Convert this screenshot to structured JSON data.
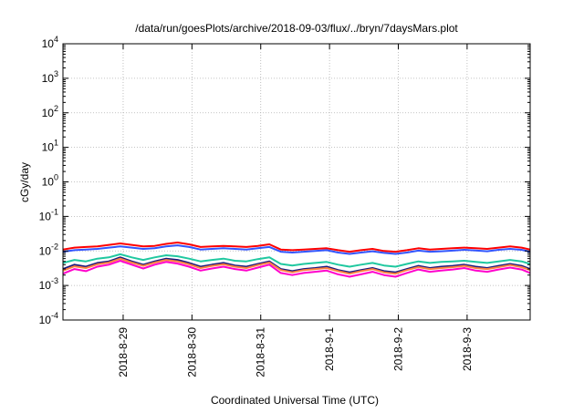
{
  "chart_data": {
    "type": "line",
    "title": "/data/run/goesPlots/archive/2018-09-03/flux/../bryn/7daysMars.plot",
    "xlabel": "Coordinated Universal Time (UTC)",
    "ylabel": "cGy/day",
    "yscale": "log",
    "ylim": [
      0.0001,
      10000
    ],
    "y_ticks": [
      {
        "base": "10",
        "exp": "4",
        "value": 10000
      },
      {
        "base": "10",
        "exp": "3",
        "value": 1000
      },
      {
        "base": "10",
        "exp": "2",
        "value": 100
      },
      {
        "base": "10",
        "exp": "1",
        "value": 10
      },
      {
        "base": "10",
        "exp": "0",
        "value": 1
      },
      {
        "base": "10",
        "exp": "-1",
        "value": 0.1
      },
      {
        "base": "10",
        "exp": "-2",
        "value": 0.01
      },
      {
        "base": "10",
        "exp": "-3",
        "value": 0.001
      },
      {
        "base": "10",
        "exp": "-4",
        "value": 0.0001
      }
    ],
    "x_range": [
      "2018-08-28T03:00",
      "2018-09-03T22:00"
    ],
    "x_ticks": [
      {
        "label": "2018-8-29",
        "date": "2018-08-29T00:00"
      },
      {
        "label": "2018-8-30",
        "date": "2018-08-30T00:00"
      },
      {
        "label": "2018-8-31",
        "date": "2018-08-31T00:00"
      },
      {
        "label": "2018-9-1",
        "date": "2018-09-01T00:00"
      },
      {
        "label": "2018-9-2",
        "date": "2018-09-02T00:00"
      },
      {
        "label": "2018-9-3",
        "date": "2018-09-03T00:00"
      }
    ],
    "grid": true,
    "x": [
      "2018-08-28T03:00",
      "2018-08-28T07:00",
      "2018-08-28T11:00",
      "2018-08-28T15:00",
      "2018-08-28T19:00",
      "2018-08-28T23:00",
      "2018-08-29T03:00",
      "2018-08-29T07:00",
      "2018-08-29T11:00",
      "2018-08-29T15:00",
      "2018-08-29T19:00",
      "2018-08-29T23:00",
      "2018-08-30T03:00",
      "2018-08-30T07:00",
      "2018-08-30T11:00",
      "2018-08-30T15:00",
      "2018-08-30T19:00",
      "2018-08-30T23:00",
      "2018-08-31T03:00",
      "2018-08-31T07:00",
      "2018-08-31T11:00",
      "2018-08-31T15:00",
      "2018-08-31T19:00",
      "2018-08-31T23:00",
      "2018-09-01T03:00",
      "2018-09-01T07:00",
      "2018-09-01T11:00",
      "2018-09-01T15:00",
      "2018-09-01T19:00",
      "2018-09-01T23:00",
      "2018-09-02T03:00",
      "2018-09-02T07:00",
      "2018-09-02T11:00",
      "2018-09-02T15:00",
      "2018-09-02T19:00",
      "2018-09-02T23:00",
      "2018-09-03T03:00",
      "2018-09-03T07:00",
      "2018-09-03T11:00",
      "2018-09-03T15:00",
      "2018-09-03T19:00",
      "2018-09-03T22:00"
    ],
    "series": [
      {
        "color": "#ff0000",
        "values": [
          0.011,
          0.0125,
          0.013,
          0.0135,
          0.015,
          0.0165,
          0.015,
          0.0135,
          0.014,
          0.016,
          0.0175,
          0.0155,
          0.013,
          0.0135,
          0.014,
          0.0135,
          0.013,
          0.014,
          0.0155,
          0.011,
          0.0105,
          0.011,
          0.0115,
          0.012,
          0.0105,
          0.0095,
          0.0105,
          0.0115,
          0.01,
          0.0095,
          0.0105,
          0.012,
          0.011,
          0.0115,
          0.012,
          0.0125,
          0.012,
          0.0115,
          0.0125,
          0.0135,
          0.0125,
          0.011
        ]
      },
      {
        "color": "#3355ff",
        "values": [
          0.0095,
          0.0105,
          0.011,
          0.0115,
          0.0125,
          0.0135,
          0.0125,
          0.0115,
          0.012,
          0.0135,
          0.0145,
          0.013,
          0.011,
          0.0115,
          0.012,
          0.0115,
          0.011,
          0.012,
          0.013,
          0.0095,
          0.009,
          0.0095,
          0.01,
          0.0105,
          0.009,
          0.0082,
          0.009,
          0.0098,
          0.0088,
          0.0082,
          0.009,
          0.0102,
          0.0095,
          0.0098,
          0.0102,
          0.0108,
          0.0103,
          0.0098,
          0.0108,
          0.0115,
          0.0108,
          0.0095
        ]
      },
      {
        "color": "#20c8a0",
        "values": [
          0.0045,
          0.0055,
          0.005,
          0.006,
          0.0065,
          0.008,
          0.0065,
          0.0055,
          0.0065,
          0.0075,
          0.007,
          0.006,
          0.005,
          0.0055,
          0.006,
          0.0052,
          0.005,
          0.0058,
          0.0065,
          0.0042,
          0.0038,
          0.0042,
          0.0045,
          0.0048,
          0.004,
          0.0035,
          0.004,
          0.0045,
          0.0038,
          0.0035,
          0.0042,
          0.005,
          0.0045,
          0.0048,
          0.005,
          0.0052,
          0.0048,
          0.0045,
          0.005,
          0.0055,
          0.005,
          0.0042
        ]
      },
      {
        "color": "#1a1a80",
        "values": [
          0.003,
          0.004,
          0.0035,
          0.0045,
          0.005,
          0.0065,
          0.005,
          0.004,
          0.005,
          0.006,
          0.0055,
          0.0045,
          0.0035,
          0.004,
          0.0045,
          0.0038,
          0.0035,
          0.0042,
          0.005,
          0.003,
          0.0026,
          0.003,
          0.0032,
          0.0035,
          0.0028,
          0.0024,
          0.0028,
          0.0032,
          0.0026,
          0.0024,
          0.003,
          0.0037,
          0.0032,
          0.0035,
          0.0037,
          0.004,
          0.0035,
          0.0032,
          0.0037,
          0.0042,
          0.0037,
          0.003
        ]
      },
      {
        "color": "#ff8040",
        "values": [
          0.0027,
          0.0036,
          0.0032,
          0.0041,
          0.0046,
          0.006,
          0.0046,
          0.0037,
          0.0046,
          0.0055,
          0.005,
          0.0041,
          0.0032,
          0.0037,
          0.0041,
          0.0035,
          0.0032,
          0.0039,
          0.0046,
          0.0028,
          0.0024,
          0.0028,
          0.003,
          0.0032,
          0.0026,
          0.0022,
          0.0026,
          0.003,
          0.0024,
          0.0022,
          0.0028,
          0.0034,
          0.003,
          0.0032,
          0.0034,
          0.0037,
          0.0032,
          0.003,
          0.0034,
          0.0039,
          0.0034,
          0.0028
        ]
      },
      {
        "color": "#ff00cc",
        "values": [
          0.0022,
          0.003,
          0.0026,
          0.0035,
          0.004,
          0.0052,
          0.004,
          0.0031,
          0.004,
          0.0048,
          0.0043,
          0.0035,
          0.0027,
          0.0031,
          0.0035,
          0.003,
          0.0027,
          0.0033,
          0.004,
          0.0023,
          0.002,
          0.0023,
          0.0025,
          0.0027,
          0.0021,
          0.0018,
          0.0021,
          0.0025,
          0.002,
          0.0018,
          0.0023,
          0.0029,
          0.0025,
          0.0027,
          0.0029,
          0.0032,
          0.0027,
          0.0025,
          0.0029,
          0.0033,
          0.0029,
          0.0023
        ]
      }
    ]
  }
}
